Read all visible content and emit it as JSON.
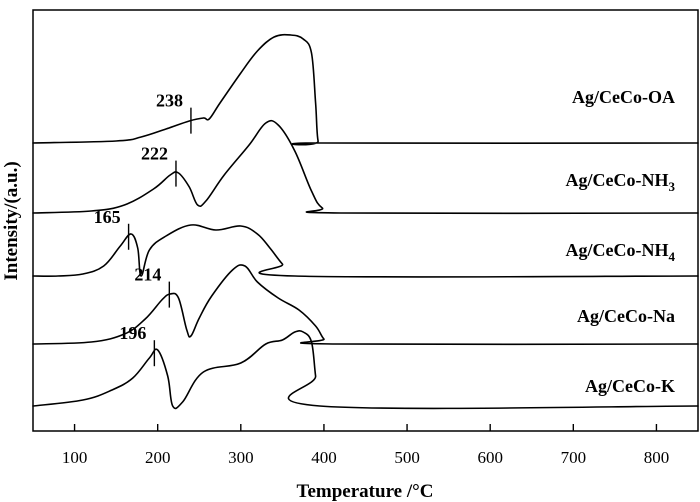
{
  "chart_data": {
    "type": "line",
    "title": "",
    "xlabel": "Temperature /°C",
    "ylabel": "Intensity/(a.u.)",
    "xlim": [
      50,
      850
    ],
    "xticks": [
      100,
      200,
      300,
      400,
      500,
      600,
      700,
      800
    ],
    "yticks": [],
    "grid": false,
    "legend": "labels placed on the right beside each curve",
    "series": [
      {
        "name": "Ag/CeCo-OA",
        "name_main": "Ag/CeCo-OA",
        "name_sub": "",
        "peak_label": "238",
        "peak_x": 240,
        "points": [
          [
            50,
            0.0
          ],
          [
            150,
            2.0
          ],
          [
            180,
            6.0
          ],
          [
            210,
            14.0
          ],
          [
            238,
            22.0
          ],
          [
            255,
            25.0
          ],
          [
            262,
            24.0
          ],
          [
            275,
            40.0
          ],
          [
            300,
            70.0
          ],
          [
            320,
            92.0
          ],
          [
            340,
            106.0
          ],
          [
            360,
            108.0
          ],
          [
            375,
            104.0
          ],
          [
            385,
            90.0
          ],
          [
            390,
            40.0
          ],
          [
            393,
            2.0
          ],
          [
            400,
            0.0
          ],
          [
            850,
            0.0
          ]
        ]
      },
      {
        "name": "Ag/CeCo-NH3",
        "name_main": "Ag/CeCo-NH",
        "name_sub": "3",
        "peak_label": "222",
        "peak_x": 222,
        "points": [
          [
            50,
            0.0
          ],
          [
            120,
            2.0
          ],
          [
            160,
            8.0
          ],
          [
            195,
            24.0
          ],
          [
            215,
            38.0
          ],
          [
            225,
            40.0
          ],
          [
            238,
            26.0
          ],
          [
            248,
            8.0
          ],
          [
            258,
            12.0
          ],
          [
            280,
            38.0
          ],
          [
            310,
            68.0
          ],
          [
            330,
            90.0
          ],
          [
            345,
            88.0
          ],
          [
            365,
            62.0
          ],
          [
            385,
            22.0
          ],
          [
            398,
            5.0
          ],
          [
            420,
            0.0
          ],
          [
            850,
            0.0
          ]
        ]
      },
      {
        "name": "Ag/CeCo-NH4",
        "name_main": "Ag/CeCo-NH",
        "name_sub": "4",
        "peak_label": "165",
        "peak_x": 165,
        "points": [
          [
            50,
            0.0
          ],
          [
            80,
            0.0
          ],
          [
            110,
            2.0
          ],
          [
            135,
            10.0
          ],
          [
            155,
            30.0
          ],
          [
            168,
            42.0
          ],
          [
            176,
            28.0
          ],
          [
            180,
            0.0
          ],
          [
            190,
            26.0
          ],
          [
            210,
            40.0
          ],
          [
            240,
            51.0
          ],
          [
            270,
            46.0
          ],
          [
            300,
            50.0
          ],
          [
            320,
            42.0
          ],
          [
            335,
            28.0
          ],
          [
            350,
            12.0
          ],
          [
            365,
            0.0
          ],
          [
            850,
            0.0
          ]
        ]
      },
      {
        "name": "Ag/CeCo-Na",
        "name_main": "Ag/CeCo-Na",
        "name_sub": "",
        "peak_label": "214",
        "peak_x": 214,
        "points": [
          [
            50,
            0.0
          ],
          [
            120,
            2.0
          ],
          [
            160,
            10.0
          ],
          [
            185,
            25.0
          ],
          [
            205,
            44.0
          ],
          [
            215,
            50.0
          ],
          [
            225,
            46.0
          ],
          [
            235,
            14.0
          ],
          [
            240,
            8.0
          ],
          [
            250,
            26.0
          ],
          [
            265,
            48.0
          ],
          [
            290,
            74.0
          ],
          [
            305,
            78.0
          ],
          [
            320,
            62.0
          ],
          [
            345,
            46.0
          ],
          [
            370,
            34.0
          ],
          [
            390,
            18.0
          ],
          [
            400,
            5.0
          ],
          [
            410,
            0.0
          ],
          [
            850,
            0.0
          ]
        ]
      },
      {
        "name": "Ag/CeCo-K",
        "name_main": "Ag/CeCo-K",
        "name_sub": "",
        "peak_label": "196",
        "peak_x": 196,
        "points": [
          [
            50,
            0.0
          ],
          [
            110,
            6.0
          ],
          [
            145,
            16.0
          ],
          [
            170,
            28.0
          ],
          [
            190,
            48.0
          ],
          [
            200,
            56.0
          ],
          [
            212,
            30.0
          ],
          [
            218,
            0.0
          ],
          [
            230,
            4.0
          ],
          [
            255,
            34.0
          ],
          [
            300,
            43.0
          ],
          [
            330,
            62.0
          ],
          [
            350,
            66.0
          ],
          [
            365,
            74.0
          ],
          [
            375,
            74.0
          ],
          [
            385,
            64.0
          ],
          [
            390,
            30.0
          ],
          [
            395,
            0.0
          ],
          [
            850,
            0.0
          ]
        ]
      }
    ]
  }
}
